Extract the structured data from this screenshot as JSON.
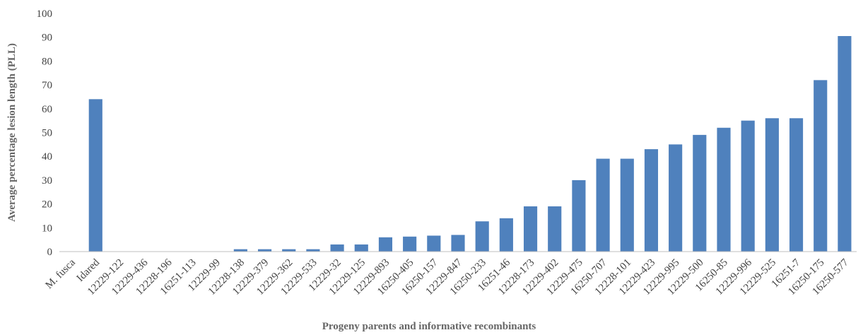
{
  "chart_data": {
    "type": "bar",
    "xlabel": "Progeny parents and informative recombinants",
    "ylabel": "Average percentage lesion length (PLL)",
    "ylim": [
      0,
      100
    ],
    "yticks": [
      0,
      10,
      20,
      30,
      40,
      50,
      60,
      70,
      80,
      90,
      100
    ],
    "grid": false,
    "legend": "none",
    "bar_color": "#4f81bd",
    "categories": [
      "M. fusca",
      "Idared",
      "12229-122",
      "12229-436",
      "12228-196",
      "16251-113",
      "12229-99",
      "12228-138",
      "12229-379",
      "12229-362",
      "12229-533",
      "12229-32",
      "12229-125",
      "12229-893",
      "16250-405",
      "16250-157",
      "12229-847",
      "16250-233",
      "16251-46",
      "12228-173",
      "12229-402",
      "12229-475",
      "16250-707",
      "12228-101",
      "12229-423",
      "12229-995",
      "12229-500",
      "16250-85",
      "12229-996",
      "12229-525",
      "16251-7",
      "16250-175",
      "16250-577"
    ],
    "values": [
      0,
      64,
      0,
      0,
      0,
      0,
      0,
      1,
      1,
      1,
      1,
      3,
      3,
      6,
      6.3,
      6.7,
      7,
      12.7,
      14,
      19,
      19,
      30,
      39,
      39,
      43,
      45,
      49,
      52,
      55,
      56,
      56,
      72,
      90.5
    ]
  }
}
